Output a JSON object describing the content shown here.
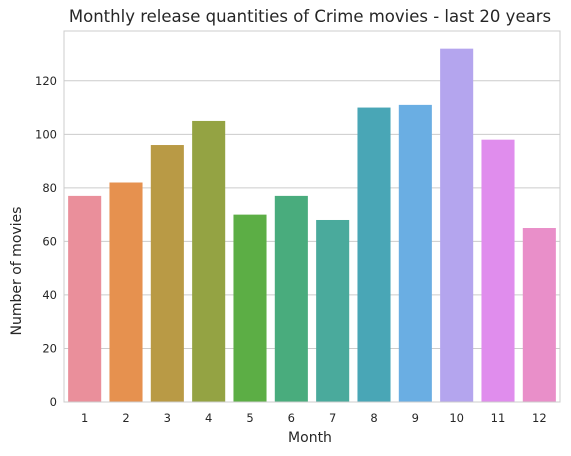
{
  "chart_data": {
    "type": "bar",
    "title": "Monthly release quantities of Crime movies - last 20 years",
    "xlabel": "Month",
    "ylabel": "Number of movies",
    "categories": [
      "1",
      "2",
      "3",
      "4",
      "5",
      "6",
      "7",
      "8",
      "9",
      "10",
      "11",
      "12"
    ],
    "values": [
      77,
      82,
      96,
      105,
      70,
      77,
      68,
      110,
      111,
      132,
      98,
      65
    ],
    "colors": [
      "#ea8f9b",
      "#e6914f",
      "#b99a45",
      "#94a343",
      "#5cae45",
      "#49ac7d",
      "#4aaa9c",
      "#49a6b6",
      "#6aaee3",
      "#b4a5ee",
      "#e08ded",
      "#e98fc9"
    ],
    "ylim": [
      0,
      138.6
    ],
    "yticks": [
      0,
      20,
      40,
      60,
      80,
      100,
      120
    ],
    "grid": "y",
    "legend": "none"
  }
}
